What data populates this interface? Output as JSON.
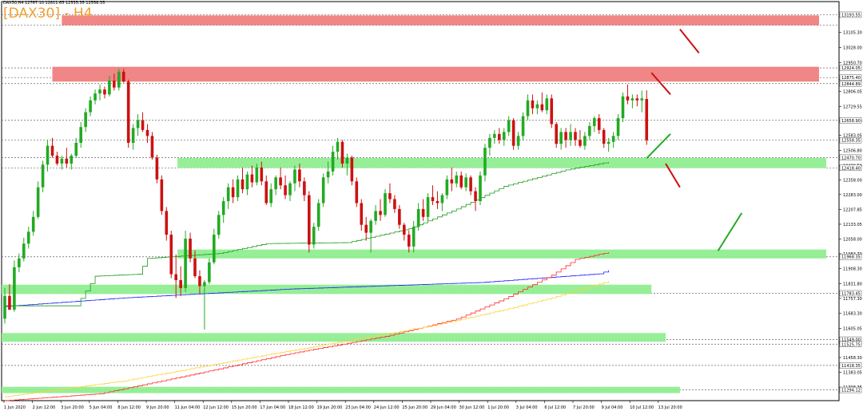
{
  "header": {
    "symbol_line": "DAX30,H4  12767.10 12811.65 12535.35 12558.35",
    "title": "[DAX30] - H4"
  },
  "colors": {
    "bull": "#22aa22",
    "bear": "#cc1111",
    "resistance_zone": "#f08080",
    "support_zone": "#90ee90",
    "ma_blue": "#1a1aff",
    "ma_red": "#ff2a2a",
    "ma_yellow": "#ffd23a",
    "ma_green": "#1a9a1a",
    "title": "#f0a030"
  },
  "chart_data": {
    "type": "candlestick",
    "x_labels": [
      "1 Jun 2020",
      "2 Jun 12:00",
      "3 Jun 20:00",
      "5 Jun 04:00",
      "8 Jun 12:00",
      "9 Jun 20:00",
      "11 Jun 04:00",
      "12 Jun 12:00",
      "15 Jun 20:00",
      "17 Jun 04:00",
      "18 Jun 12:00",
      "19 Jun 20:00",
      "23 Jun 04:00",
      "24 Jun 12:00",
      "25 Jun 20:00",
      "29 Jun 04:00",
      "30 Jun 12:00",
      "1 Jul 20:00",
      "3 Jul 04:00",
      "6 Jul 12:00",
      "7 Jul 20:00",
      "9 Jul 04:00",
      "10 Jul 12:00",
      "13 Jul 20:00"
    ],
    "y_ticks": [
      "13105.30",
      "13028.00",
      "12950.70",
      "12866.05",
      "12806.05",
      "12729.55",
      "12655.30",
      "12583.05",
      "12506.80",
      "12430.50",
      "12358.00",
      "12283.00",
      "12207.85",
      "12133.05",
      "12058.00",
      "11983.70",
      "11908.30",
      "11831.80",
      "11757.30",
      "11683.30",
      "11605.05",
      "11530.05",
      "11458.30",
      "11383.05",
      "11308.35"
    ],
    "price_labels": [
      "13193.55",
      "12924.05",
      "12875.40",
      "12844.89",
      "12658.90",
      "12558.35",
      "12470.70",
      "12418.40",
      "11968.35",
      "11783.45",
      "11549.00",
      "11525.75",
      "11418.35",
      "11294.12"
    ],
    "ylim": [
      11240,
      13260
    ],
    "resistance_zones": [
      {
        "low": 13140,
        "high": 13190,
        "from_index": 12,
        "to_index": null
      },
      {
        "low": 12855,
        "high": 12930,
        "from_index": 10,
        "to_index": null
      }
    ],
    "support_zones": [
      {
        "low": 12418,
        "high": 12468,
        "from_index": 37,
        "to_index": null
      },
      {
        "low": 11960,
        "high": 12005,
        "from_index": 37,
        "to_index": null
      },
      {
        "low": 11780,
        "high": 11827,
        "from_index": 0,
        "to_index": 136
      },
      {
        "low": 11538,
        "high": 11582,
        "from_index": 0,
        "to_index": 139
      },
      {
        "low": 11278,
        "high": 11310,
        "from_index": 0,
        "to_index": 142
      }
    ],
    "h_levels": [
      13193.55,
      13140,
      12924.05,
      12875.4,
      12844.89,
      12658.9,
      12558.35,
      12470.7,
      12418.4,
      11968.35,
      11783.45,
      11549.0,
      11525.75,
      11418.35,
      11294.12
    ],
    "ma_series": [
      {
        "color": "ma_blue",
        "points": [
          [
            0,
            11717
          ],
          [
            25,
            11760
          ],
          [
            60,
            11805
          ],
          [
            100,
            11838
          ],
          [
            125,
            11882
          ],
          [
            127,
            11900
          ]
        ]
      },
      {
        "color": "ma_red",
        "points": [
          [
            0,
            11240
          ],
          [
            20,
            11275
          ],
          [
            40,
            11375
          ],
          [
            60,
            11478
          ],
          [
            80,
            11565
          ],
          [
            95,
            11653
          ],
          [
            105,
            11755
          ],
          [
            115,
            11875
          ],
          [
            120,
            11955
          ],
          [
            127,
            11991
          ]
        ]
      },
      {
        "color": "ma_yellow",
        "points": [
          [
            0,
            11260
          ],
          [
            25,
            11340
          ],
          [
            50,
            11450
          ],
          [
            70,
            11535
          ],
          [
            90,
            11620
          ],
          [
            105,
            11700
          ],
          [
            115,
            11760
          ],
          [
            127,
            11845
          ]
        ]
      },
      {
        "color": "ma_green",
        "points": [
          [
            0,
            11720
          ],
          [
            15,
            11720
          ],
          [
            19,
            11870
          ],
          [
            28,
            11880
          ],
          [
            30,
            11960
          ],
          [
            45,
            11985
          ],
          [
            55,
            12035
          ],
          [
            72,
            12040
          ],
          [
            85,
            12110
          ],
          [
            95,
            12210
          ],
          [
            105,
            12325
          ],
          [
            118,
            12408
          ],
          [
            127,
            12448
          ]
        ]
      }
    ],
    "trend_arrows": [
      {
        "color": "bear",
        "from": [
          142,
          13120
        ],
        "to": [
          146,
          13000
        ]
      },
      {
        "color": "bear",
        "from": [
          136,
          12900
        ],
        "to": [
          140,
          12790
        ]
      },
      {
        "color": "bull",
        "from": [
          135,
          12467
        ],
        "to": [
          140,
          12590
        ]
      },
      {
        "color": "bear",
        "from": [
          139,
          12440
        ],
        "to": [
          142,
          12320
        ]
      },
      {
        "color": "bull",
        "from": [
          150,
          11998
        ],
        "to": [
          155,
          12190
        ]
      }
    ],
    "ohlc": [
      [
        11655,
        11810,
        11630,
        11770
      ],
      [
        11770,
        11830,
        11700,
        11700
      ],
      [
        11700,
        11950,
        11690,
        11915
      ],
      [
        11915,
        11985,
        11890,
        11960
      ],
      [
        11960,
        12065,
        11945,
        12035
      ],
      [
        12035,
        12120,
        12010,
        12095
      ],
      [
        12095,
        12200,
        12075,
        12170
      ],
      [
        12170,
        12350,
        12160,
        12320
      ],
      [
        12320,
        12455,
        12295,
        12435
      ],
      [
        12435,
        12560,
        12400,
        12530
      ],
      [
        12530,
        12570,
        12470,
        12480
      ],
      [
        12480,
        12500,
        12430,
        12440
      ],
      [
        12440,
        12480,
        12410,
        12465
      ],
      [
        12465,
        12520,
        12420,
        12440
      ],
      [
        12440,
        12490,
        12410,
        12480
      ],
      [
        12480,
        12570,
        12470,
        12545
      ],
      [
        12545,
        12650,
        12520,
        12625
      ],
      [
        12625,
        12720,
        12600,
        12700
      ],
      [
        12700,
        12780,
        12680,
        12760
      ],
      [
        12760,
        12815,
        12740,
        12795
      ],
      [
        12795,
        12840,
        12760,
        12815
      ],
      [
        12815,
        12830,
        12770,
        12790
      ],
      [
        12790,
        12885,
        12780,
        12860
      ],
      [
        12860,
        12895,
        12810,
        12825
      ],
      [
        12825,
        12920,
        12810,
        12905
      ],
      [
        12905,
        12920,
        12850,
        12855
      ],
      [
        12855,
        12865,
        12520,
        12545
      ],
      [
        12545,
        12640,
        12510,
        12620
      ],
      [
        12620,
        12690,
        12580,
        12660
      ],
      [
        12660,
        12700,
        12600,
        12610
      ],
      [
        12610,
        12640,
        12545,
        12580
      ],
      [
        12580,
        12600,
        12460,
        12470
      ],
      [
        12470,
        12485,
        12340,
        12360
      ],
      [
        12360,
        12380,
        12180,
        12200
      ],
      [
        12200,
        12220,
        12050,
        12080
      ],
      [
        12080,
        12100,
        11860,
        11880
      ],
      [
        11880,
        11980,
        11760,
        11850
      ],
      [
        11850,
        11920,
        11770,
        11810
      ],
      [
        11810,
        12100,
        11790,
        12060
      ],
      [
        12060,
        12090,
        11940,
        11960
      ],
      [
        11960,
        12000,
        11860,
        11870
      ],
      [
        11870,
        11900,
        11780,
        11820
      ],
      [
        11820,
        11850,
        11600,
        11840
      ],
      [
        11840,
        11960,
        11830,
        11940
      ],
      [
        11940,
        12110,
        11930,
        12080
      ],
      [
        12080,
        12200,
        12060,
        12180
      ],
      [
        12180,
        12270,
        12140,
        12250
      ],
      [
        12250,
        12340,
        12210,
        12320
      ],
      [
        12320,
        12360,
        12240,
        12270
      ],
      [
        12270,
        12380,
        12250,
        12360
      ],
      [
        12360,
        12420,
        12290,
        12310
      ],
      [
        12310,
        12400,
        12280,
        12385
      ],
      [
        12385,
        12430,
        12320,
        12345
      ],
      [
        12345,
        12440,
        12330,
        12420
      ],
      [
        12420,
        12450,
        12330,
        12350
      ],
      [
        12350,
        12380,
        12230,
        12240
      ],
      [
        12240,
        12340,
        12220,
        12310
      ],
      [
        12310,
        12380,
        12280,
        12370
      ],
      [
        12370,
        12420,
        12310,
        12330
      ],
      [
        12330,
        12380,
        12260,
        12280
      ],
      [
        12280,
        12350,
        12250,
        12340
      ],
      [
        12340,
        12430,
        12300,
        12410
      ],
      [
        12410,
        12440,
        12320,
        12350
      ],
      [
        12350,
        12370,
        12250,
        12280
      ],
      [
        12280,
        12300,
        11990,
        12030
      ],
      [
        12030,
        12140,
        12010,
        12120
      ],
      [
        12120,
        12260,
        12100,
        12240
      ],
      [
        12240,
        12390,
        12220,
        12370
      ],
      [
        12370,
        12450,
        12340,
        12400
      ],
      [
        12400,
        12530,
        12380,
        12500
      ],
      [
        12500,
        12570,
        12460,
        12550
      ],
      [
        12550,
        12560,
        12420,
        12440
      ],
      [
        12440,
        12490,
        12380,
        12470
      ],
      [
        12470,
        12480,
        12330,
        12350
      ],
      [
        12350,
        12370,
        12220,
        12240
      ],
      [
        12240,
        12260,
        12100,
        12130
      ],
      [
        12130,
        12170,
        12050,
        12090
      ],
      [
        12090,
        12160,
        11990,
        12150
      ],
      [
        12150,
        12230,
        12130,
        12200
      ],
      [
        12200,
        12260,
        12150,
        12180
      ],
      [
        12180,
        12310,
        12170,
        12290
      ],
      [
        12290,
        12340,
        12240,
        12260
      ],
      [
        12260,
        12280,
        12190,
        12210
      ],
      [
        12210,
        12230,
        12110,
        12130
      ],
      [
        12130,
        12140,
        12050,
        12080
      ],
      [
        12080,
        12100,
        11990,
        12020
      ],
      [
        12020,
        12150,
        11990,
        12120
      ],
      [
        12120,
        12240,
        12100,
        12210
      ],
      [
        12210,
        12260,
        12150,
        12170
      ],
      [
        12170,
        12290,
        12150,
        12270
      ],
      [
        12270,
        12330,
        12230,
        12250
      ],
      [
        12250,
        12300,
        12210,
        12240
      ],
      [
        12240,
        12290,
        12200,
        12280
      ],
      [
        12280,
        12380,
        12260,
        12360
      ],
      [
        12360,
        12420,
        12300,
        12340
      ],
      [
        12340,
        12400,
        12320,
        12380
      ],
      [
        12380,
        12400,
        12310,
        12320
      ],
      [
        12320,
        12390,
        12300,
        12370
      ],
      [
        12370,
        12380,
        12280,
        12300
      ],
      [
        12300,
        12320,
        12200,
        12250
      ],
      [
        12250,
        12400,
        12230,
        12380
      ],
      [
        12380,
        12540,
        12350,
        12520
      ],
      [
        12520,
        12590,
        12480,
        12570
      ],
      [
        12570,
        12610,
        12540,
        12590
      ],
      [
        12590,
        12620,
        12540,
        12560
      ],
      [
        12560,
        12620,
        12530,
        12600
      ],
      [
        12600,
        12680,
        12580,
        12660
      ],
      [
        12660,
        12670,
        12510,
        12530
      ],
      [
        12530,
        12600,
        12510,
        12580
      ],
      [
        12580,
        12700,
        12560,
        12680
      ],
      [
        12680,
        12790,
        12660,
        12760
      ],
      [
        12760,
        12790,
        12690,
        12720
      ],
      [
        12720,
        12760,
        12690,
        12740
      ],
      [
        12740,
        12800,
        12700,
        12710
      ],
      [
        12710,
        12790,
        12690,
        12770
      ],
      [
        12770,
        12790,
        12620,
        12640
      ],
      [
        12640,
        12650,
        12520,
        12540
      ],
      [
        12540,
        12620,
        12510,
        12600
      ],
      [
        12600,
        12620,
        12520,
        12560
      ],
      [
        12560,
        12640,
        12530,
        12600
      ],
      [
        12600,
        12620,
        12530,
        12560
      ],
      [
        12560,
        12610,
        12520,
        12530
      ],
      [
        12530,
        12600,
        12510,
        12580
      ],
      [
        12580,
        12650,
        12560,
        12630
      ],
      [
        12630,
        12680,
        12600,
        12670
      ],
      [
        12670,
        12690,
        12590,
        12610
      ],
      [
        12610,
        12620,
        12520,
        12540
      ],
      [
        12540,
        12570,
        12500,
        12550
      ],
      [
        12550,
        12600,
        12520,
        12580
      ],
      [
        12580,
        12690,
        12560,
        12670
      ],
      [
        12670,
        12800,
        12650,
        12780
      ],
      [
        12780,
        12840,
        12740,
        12760
      ],
      [
        12760,
        12790,
        12720,
        12770
      ],
      [
        12770,
        12790,
        12730,
        12760
      ],
      [
        12760,
        12810,
        12700,
        12770
      ],
      [
        12767,
        12811,
        12535,
        12558
      ]
    ]
  }
}
